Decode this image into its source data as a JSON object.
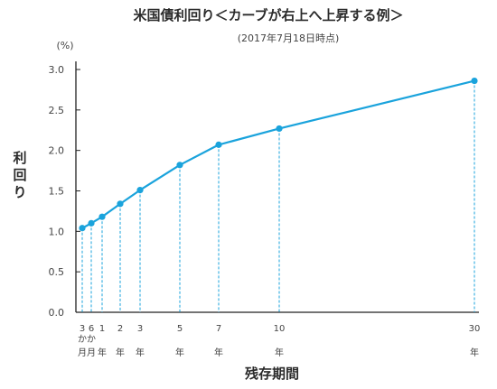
{
  "chart_data": {
    "type": "line",
    "title": "米国債利回り＜カーブが右上へ上昇する例＞",
    "subtitle": "(2017年7月18日時点)",
    "ylabel": "利回り",
    "y_unit": "(%)",
    "xlabel": "残存期間",
    "ylim": [
      0,
      3.0
    ],
    "y_ticks": [
      "0.0",
      "0.5",
      "1.0",
      "1.5",
      "2.0",
      "2.5",
      "3.0"
    ],
    "grid": false,
    "legend": "none",
    "line_color": "#1aa3dc",
    "points": [
      {
        "years": 0.25,
        "value": 1.04,
        "label": [
          "3",
          "か",
          "月"
        ]
      },
      {
        "years": 0.5,
        "value": 1.1,
        "label": [
          "6",
          "か",
          "月"
        ]
      },
      {
        "years": 1,
        "value": 1.18,
        "label": [
          "1",
          "",
          "年"
        ]
      },
      {
        "years": 2,
        "value": 1.34,
        "label": [
          "2",
          "",
          "年"
        ]
      },
      {
        "years": 3,
        "value": 1.51,
        "label": [
          "3",
          "",
          "年"
        ]
      },
      {
        "years": 5,
        "value": 1.82,
        "label": [
          "5",
          "",
          "年"
        ]
      },
      {
        "years": 7,
        "value": 2.07,
        "label": [
          "7",
          "",
          "年"
        ]
      },
      {
        "years": 10,
        "value": 2.27,
        "label": [
          "10",
          "",
          "年"
        ]
      },
      {
        "years": 30,
        "value": 2.86,
        "label": [
          "30",
          "",
          "年"
        ]
      }
    ]
  }
}
